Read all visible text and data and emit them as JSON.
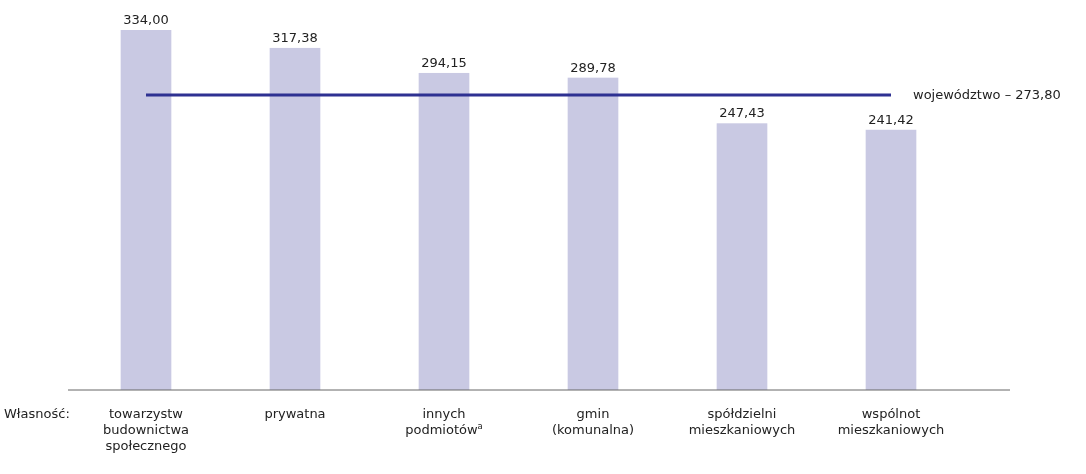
{
  "chart_data": {
    "type": "bar",
    "xlabel": "Własność:",
    "categories": [
      "towarzystw budownictwa społecznego",
      "prywatna",
      "innych podmiotów$^{a}$",
      "gmin (komunalna)",
      "spółdzielni mieszkaniowych",
      "wspólnot mieszkaniowych"
    ],
    "values": [
      334.0,
      317.38,
      294.15,
      289.78,
      247.43,
      241.42
    ],
    "value_labels": [
      "334,00",
      "317,38",
      "294,15",
      "289,78",
      "247,43",
      "241,42"
    ],
    "color": "#c9c9e3",
    "ref_lines": [
      {
        "axis": "y",
        "value": 273.8,
        "label": "województwo – 273,80",
        "color": "#2e3192"
      }
    ]
  }
}
